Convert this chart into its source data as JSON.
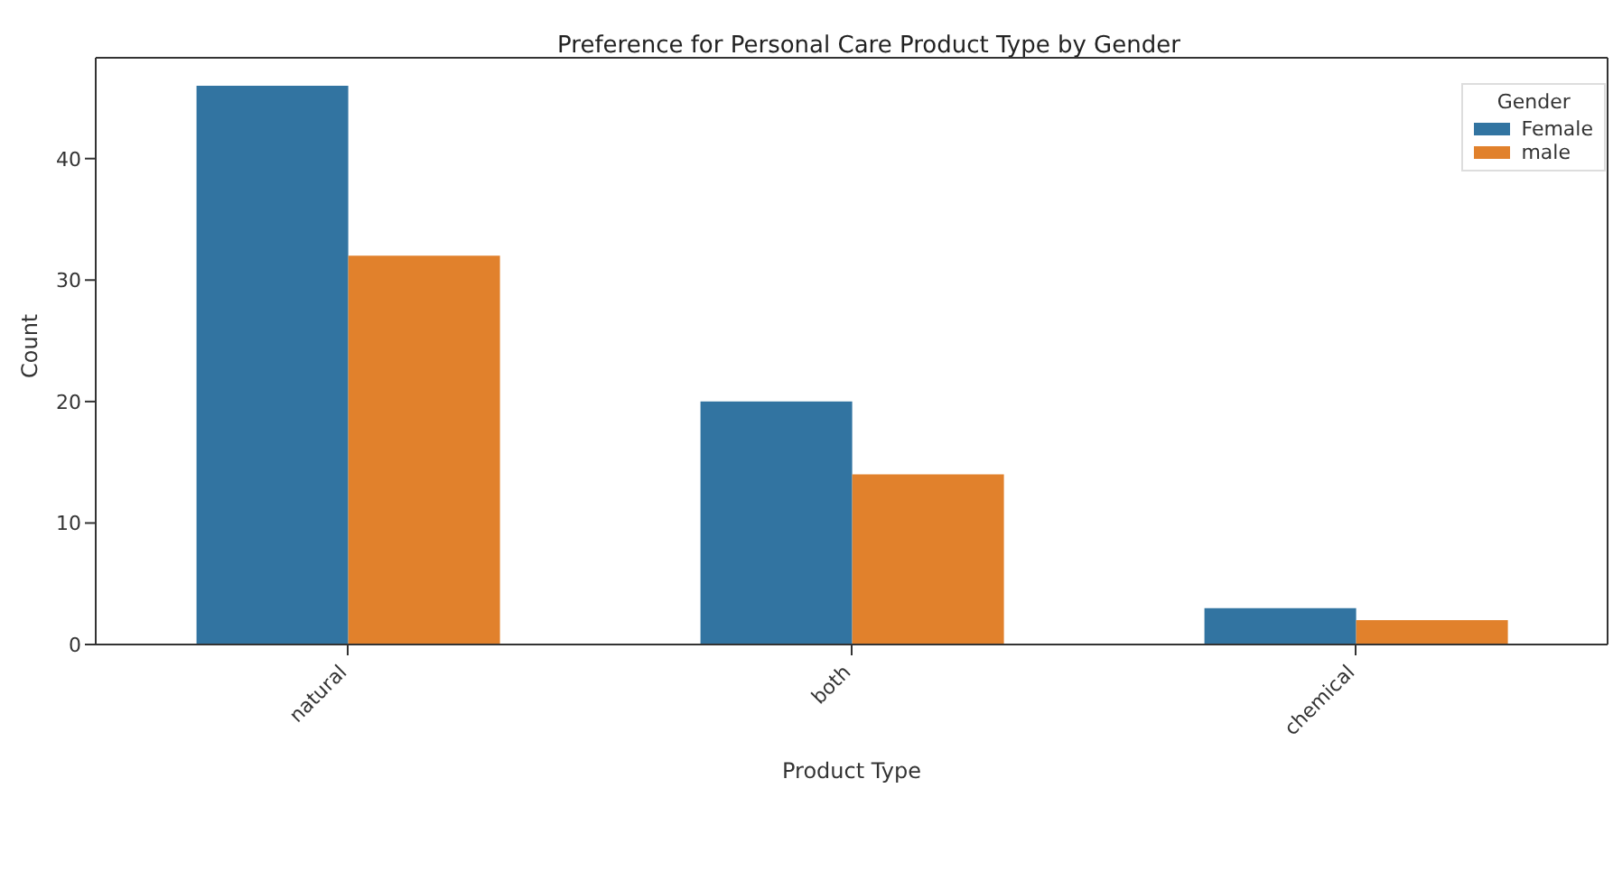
{
  "chart_data": {
    "type": "bar",
    "title": "Preference for Personal Care Product Type by Gender",
    "xlabel": "Product Type",
    "ylabel": "Count",
    "legend_title": "Gender",
    "categories": [
      "natural",
      "both",
      "chemical"
    ],
    "series": [
      {
        "name": "Female",
        "color": "#3274a1",
        "values": [
          46,
          20,
          3
        ]
      },
      {
        "name": "male",
        "color": "#e1812c",
        "values": [
          32,
          14,
          2
        ]
      }
    ],
    "ylim": [
      0,
      48.3
    ],
    "yticks": [
      0,
      10,
      20,
      30,
      40
    ],
    "grid": false,
    "legend": "top right"
  }
}
